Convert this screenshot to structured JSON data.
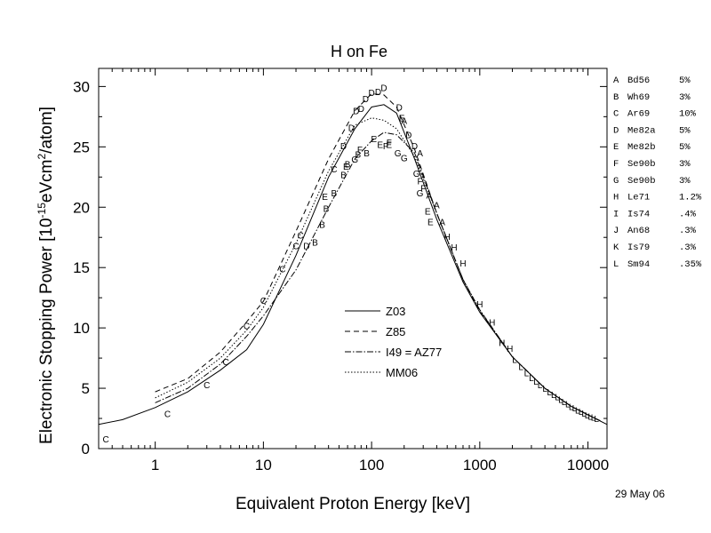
{
  "chart_data": {
    "type": "scatter",
    "title": "H on Fe",
    "xlabel": "Equivalent Proton Energy [keV]",
    "ylabel_parts": [
      "Electronic Stopping Power [10",
      "-15",
      "eVcm",
      "2",
      "/atom]"
    ],
    "xscale": "log",
    "xlim": [
      0.3,
      15000
    ],
    "ylim": [
      0,
      31.5
    ],
    "xticks": [
      1,
      10,
      100,
      1000,
      10000
    ],
    "xtick_labels": [
      "1",
      "10",
      "100",
      "1000",
      "10000"
    ],
    "yticks": [
      0,
      5,
      10,
      15,
      20,
      25,
      30
    ],
    "ytick_labels": [
      "0",
      "5",
      "10",
      "15",
      "20",
      "25",
      "30"
    ],
    "grid": false,
    "date_note": "29 May 06",
    "source_table": [
      {
        "letter": "A",
        "ref": "Bd56",
        "err": "5%"
      },
      {
        "letter": "B",
        "ref": "Wh69",
        "err": "3%"
      },
      {
        "letter": "C",
        "ref": "Ar69",
        "err": "10%"
      },
      {
        "letter": "D",
        "ref": "Me82a",
        "err": "5%"
      },
      {
        "letter": "E",
        "ref": "Me82b",
        "err": "5%"
      },
      {
        "letter": "F",
        "ref": "Se90b",
        "err": "3%"
      },
      {
        "letter": "G",
        "ref": "Se90b",
        "err": "3%"
      },
      {
        "letter": "H",
        "ref": "Le71",
        "err": "1.2%"
      },
      {
        "letter": "I",
        "ref": "Is74",
        "err": ".4%"
      },
      {
        "letter": "J",
        "ref": "An68",
        "err": ".3%"
      },
      {
        "letter": "K",
        "ref": "Is79",
        "err": ".3%"
      },
      {
        "letter": "L",
        "ref": "Sm94",
        "err": ".35%"
      }
    ],
    "curves": [
      {
        "name": "Z03",
        "dash": "",
        "points": [
          [
            0.3,
            2.0
          ],
          [
            0.5,
            2.4
          ],
          [
            1,
            3.4
          ],
          [
            2,
            4.7
          ],
          [
            4,
            6.5
          ],
          [
            7,
            8.2
          ],
          [
            10,
            10.3
          ],
          [
            20,
            16.0
          ],
          [
            40,
            22.5
          ],
          [
            70,
            26.5
          ],
          [
            100,
            28.3
          ],
          [
            130,
            28.5
          ],
          [
            170,
            27.8
          ],
          [
            250,
            24.0
          ],
          [
            400,
            19.0
          ],
          [
            700,
            13.8
          ],
          [
            1000,
            11.3
          ],
          [
            2000,
            7.6
          ],
          [
            4000,
            5.0
          ],
          [
            7000,
            3.5
          ],
          [
            10000,
            2.8
          ],
          [
            15000,
            2.0
          ]
        ]
      },
      {
        "name": "Z85",
        "dash": "6,4",
        "points": [
          [
            1,
            4.7
          ],
          [
            2,
            5.8
          ],
          [
            4,
            8.0
          ],
          [
            7,
            10.5
          ],
          [
            10,
            12.2
          ],
          [
            20,
            18.0
          ],
          [
            40,
            24.0
          ],
          [
            70,
            28.0
          ],
          [
            100,
            29.4
          ],
          [
            130,
            29.3
          ],
          [
            170,
            28.3
          ],
          [
            250,
            24.8
          ],
          [
            400,
            19.5
          ],
          [
            700,
            14.0
          ],
          [
            1000,
            11.4
          ],
          [
            2000,
            7.6
          ],
          [
            4000,
            5.0
          ],
          [
            7000,
            3.5
          ],
          [
            10000,
            2.8
          ],
          [
            13000,
            2.3
          ]
        ]
      },
      {
        "name": "I49 = AZ77",
        "dash": "7,2,1.5,2",
        "points": [
          [
            1,
            3.8
          ],
          [
            2,
            5.0
          ],
          [
            4,
            7.0
          ],
          [
            7,
            9.3
          ],
          [
            10,
            11.0
          ],
          [
            20,
            14.8
          ],
          [
            40,
            20.0
          ],
          [
            70,
            24.0
          ],
          [
            100,
            25.5
          ],
          [
            130,
            26.2
          ],
          [
            170,
            26.0
          ],
          [
            250,
            24.5
          ],
          [
            400,
            19.5
          ],
          [
            700,
            14.0
          ],
          [
            1000,
            11.5
          ],
          [
            2000,
            7.6
          ],
          [
            4000,
            5.0
          ],
          [
            7000,
            3.5
          ],
          [
            10000,
            2.8
          ],
          [
            13000,
            2.3
          ]
        ]
      },
      {
        "name": "MM06",
        "dash": "1.5,2",
        "points": [
          [
            1,
            4.2
          ],
          [
            2,
            5.5
          ],
          [
            4,
            7.5
          ],
          [
            7,
            9.8
          ],
          [
            10,
            11.7
          ],
          [
            20,
            17.0
          ],
          [
            40,
            23.0
          ],
          [
            70,
            26.8
          ],
          [
            100,
            27.4
          ],
          [
            130,
            27.2
          ],
          [
            170,
            26.5
          ],
          [
            250,
            24.2
          ],
          [
            400,
            19.5
          ],
          [
            700,
            14.0
          ],
          [
            1000,
            11.5
          ],
          [
            2000,
            7.6
          ],
          [
            4000,
            5.0
          ],
          [
            7000,
            3.5
          ],
          [
            10000,
            2.8
          ],
          [
            13000,
            2.3
          ]
        ]
      }
    ],
    "points": [
      {
        "s": "C",
        "x": 0.35,
        "y": 0.8
      },
      {
        "s": "C",
        "x": 1.3,
        "y": 2.9
      },
      {
        "s": "C",
        "x": 3.0,
        "y": 5.3
      },
      {
        "s": "C",
        "x": 4.5,
        "y": 7.2
      },
      {
        "s": "C",
        "x": 7,
        "y": 10.2
      },
      {
        "s": "C",
        "x": 10,
        "y": 12.3
      },
      {
        "s": "C",
        "x": 15,
        "y": 14.9
      },
      {
        "s": "C",
        "x": 20,
        "y": 16.8
      },
      {
        "s": "C",
        "x": 22,
        "y": 17.7
      },
      {
        "s": "C",
        "x": 45,
        "y": 23.2
      },
      {
        "s": "D",
        "x": 25,
        "y": 16.8
      },
      {
        "s": "D",
        "x": 55,
        "y": 25.1
      },
      {
        "s": "D",
        "x": 65,
        "y": 26.6
      },
      {
        "s": "D",
        "x": 72,
        "y": 28.0
      },
      {
        "s": "D",
        "x": 80,
        "y": 28.2
      },
      {
        "s": "D",
        "x": 88,
        "y": 29.0
      },
      {
        "s": "D",
        "x": 100,
        "y": 29.5
      },
      {
        "s": "D",
        "x": 115,
        "y": 29.6
      },
      {
        "s": "D",
        "x": 130,
        "y": 29.9
      },
      {
        "s": "D",
        "x": 180,
        "y": 28.3
      },
      {
        "s": "D",
        "x": 220,
        "y": 26.0
      },
      {
        "s": "D",
        "x": 250,
        "y": 25.1
      },
      {
        "s": "B",
        "x": 30,
        "y": 17.1
      },
      {
        "s": "B",
        "x": 35,
        "y": 18.6
      },
      {
        "s": "B",
        "x": 38,
        "y": 19.9
      },
      {
        "s": "B",
        "x": 45,
        "y": 21.2
      },
      {
        "s": "B",
        "x": 55,
        "y": 22.7
      },
      {
        "s": "B",
        "x": 60,
        "y": 23.6
      },
      {
        "s": "B",
        "x": 75,
        "y": 24.4
      },
      {
        "s": "B",
        "x": 90,
        "y": 24.5
      },
      {
        "s": "E",
        "x": 37,
        "y": 20.9
      },
      {
        "s": "E",
        "x": 58,
        "y": 23.4
      },
      {
        "s": "E",
        "x": 105,
        "y": 25.7
      },
      {
        "s": "E",
        "x": 120,
        "y": 25.2
      },
      {
        "s": "E",
        "x": 145,
        "y": 25.2
      },
      {
        "s": "E",
        "x": 190,
        "y": 27.4
      },
      {
        "s": "E",
        "x": 330,
        "y": 19.7
      },
      {
        "s": "E",
        "x": 350,
        "y": 18.8
      },
      {
        "s": "F",
        "x": 78,
        "y": 24.8
      },
      {
        "s": "F",
        "x": 135,
        "y": 25.1
      },
      {
        "s": "F",
        "x": 145,
        "y": 25.4
      },
      {
        "s": "F",
        "x": 280,
        "y": 22.2
      },
      {
        "s": "F",
        "x": 300,
        "y": 21.6
      },
      {
        "s": "G",
        "x": 70,
        "y": 24.0
      },
      {
        "s": "G",
        "x": 175,
        "y": 24.5
      },
      {
        "s": "G",
        "x": 200,
        "y": 24.1
      },
      {
        "s": "G",
        "x": 260,
        "y": 22.8
      },
      {
        "s": "G",
        "x": 280,
        "y": 21.2
      },
      {
        "s": "A",
        "x": 200,
        "y": 27.2
      },
      {
        "s": "A",
        "x": 280,
        "y": 24.5
      },
      {
        "s": "A",
        "x": 340,
        "y": 21.0
      },
      {
        "s": "A",
        "x": 400,
        "y": 20.2
      },
      {
        "s": "A",
        "x": 450,
        "y": 18.8
      },
      {
        "s": "H",
        "x": 500,
        "y": 17.6
      },
      {
        "s": "H",
        "x": 580,
        "y": 16.7
      },
      {
        "s": "H",
        "x": 700,
        "y": 15.4
      },
      {
        "s": "H",
        "x": 1000,
        "y": 12.0
      },
      {
        "s": "H",
        "x": 1300,
        "y": 10.5
      },
      {
        "s": "H",
        "x": 1600,
        "y": 8.8
      },
      {
        "s": "H",
        "x": 1900,
        "y": 8.3
      }
    ],
    "dense_series": {
      "s": "L",
      "x": [
        2100,
        2400,
        2700,
        3000,
        3300,
        3600,
        4000,
        4400,
        4800,
        5200,
        5600,
        6000,
        6500,
        7000,
        7500,
        8000,
        8600,
        9200,
        9800,
        10500,
        11200,
        12000
      ],
      "y": [
        7.4,
        6.8,
        6.3,
        5.9,
        5.6,
        5.3,
        5.0,
        4.7,
        4.5,
        4.3,
        4.1,
        3.9,
        3.7,
        3.5,
        3.4,
        3.2,
        3.1,
        2.95,
        2.8,
        2.7,
        2.6,
        2.5
      ]
    }
  }
}
